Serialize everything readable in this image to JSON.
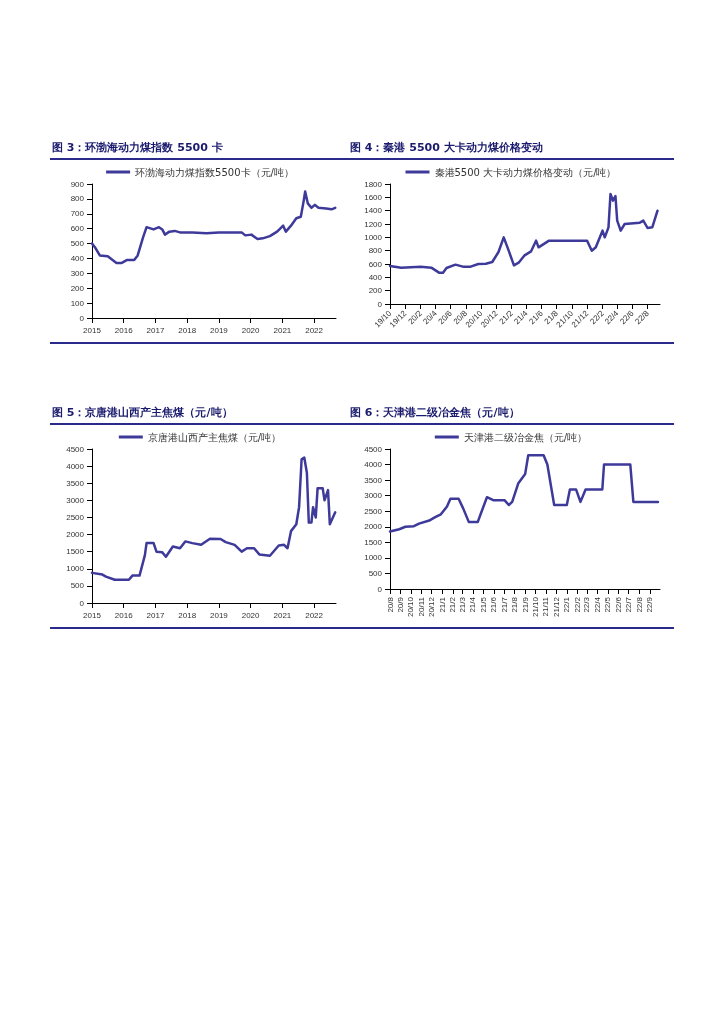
{
  "chart_data": [
    {
      "type": "line",
      "title": "图 3：环渤海动力煤指数 5500 卡",
      "legend": "top",
      "grid": false,
      "marker": "none",
      "line_style": "solid",
      "x": [
        "2015-01-01",
        "2015-02-10",
        "2015-04-01",
        "2015-07-01",
        "2015-10-10",
        "2015-12-10",
        "2016-02-10",
        "2016-05-01",
        "2016-06-10",
        "2016-08-10",
        "2016-09-20",
        "2016-12-10",
        "2017-02-10",
        "2017-03-20",
        "2017-04-20",
        "2017-06-10",
        "2017-08-10",
        "2017-10-10",
        "2018-03-01",
        "2018-08-10",
        "2019-01-01",
        "2019-09-20",
        "2019-11-01",
        "2020-01-10",
        "2020-03-20",
        "2020-05-20",
        "2020-08-10",
        "2020-11-01",
        "2021-01-10",
        "2021-02-10",
        "2021-04-10",
        "2021-06-10",
        "2021-08-01",
        "2021-09-01",
        "2021-09-20",
        "2021-10-20",
        "2021-12-01",
        "2022-01-10",
        "2022-02-20",
        "2022-05-20",
        "2022-07-20",
        "2022-09-01"
      ],
      "xlim": [
        "2015-01-01",
        "2022-09-10"
      ],
      "xticks": [
        {
          "value": "2015-01-01",
          "label": "2015"
        },
        {
          "value": "2016-01-01",
          "label": "2016"
        },
        {
          "value": "2017-01-01",
          "label": "2017"
        },
        {
          "value": "2018-01-01",
          "label": "2018"
        },
        {
          "value": "2019-01-01",
          "label": "2019"
        },
        {
          "value": "2020-01-01",
          "label": "2020"
        },
        {
          "value": "2021-01-01",
          "label": "2021"
        },
        {
          "value": "2022-01-01",
          "label": "2022"
        }
      ],
      "ylim": [
        0,
        900
      ],
      "yticks": [
        0,
        100,
        200,
        300,
        400,
        500,
        600,
        700,
        800,
        900
      ],
      "series": [
        {
          "name": "环渤海动力煤指数5500卡（元/吨）",
          "color": "#3e3a9a",
          "values": [
            500,
            470,
            420,
            415,
            370,
            370,
            390,
            390,
            420,
            540,
            610,
            595,
            610,
            595,
            560,
            580,
            585,
            575,
            575,
            570,
            575,
            575,
            555,
            560,
            530,
            535,
            550,
            580,
            620,
            580,
            620,
            670,
            680,
            780,
            850,
            770,
            740,
            760,
            740,
            735,
            730,
            740
          ]
        }
      ]
    },
    {
      "type": "line",
      "title": "图 4：秦港 5500 大卡动力煤价格变动",
      "legend": "top",
      "grid": false,
      "marker": "none",
      "line_style": "solid",
      "x": [
        "2019-10-01",
        "2019-11-15",
        "2020-02-01",
        "2020-03-15",
        "2020-04-15",
        "2020-05-01",
        "2020-05-15",
        "2020-06-20",
        "2020-07-20",
        "2020-08-20",
        "2020-09-20",
        "2020-10-20",
        "2020-11-15",
        "2020-12-10",
        "2020-12-31",
        "2021-01-20",
        "2021-02-10",
        "2021-03-01",
        "2021-03-25",
        "2021-04-20",
        "2021-05-10",
        "2021-05-20",
        "2021-07-01",
        "2021-12-01",
        "2021-12-20",
        "2022-01-05",
        "2022-02-01",
        "2022-02-10",
        "2022-02-25",
        "2022-03-05",
        "2022-03-15",
        "2022-03-25",
        "2022-04-01",
        "2022-04-15",
        "2022-05-01",
        "2022-07-01",
        "2022-07-15",
        "2022-08-01",
        "2022-08-20",
        "2022-09-10"
      ],
      "xlim": [
        "2019-10-01",
        "2022-09-20"
      ],
      "xticks": [
        {
          "value": "2019-10-01",
          "label": "19/10"
        },
        {
          "value": "2019-12-01",
          "label": "19/12"
        },
        {
          "value": "2020-02-01",
          "label": "20/2"
        },
        {
          "value": "2020-04-01",
          "label": "20/4"
        },
        {
          "value": "2020-06-01",
          "label": "20/6"
        },
        {
          "value": "2020-08-01",
          "label": "20/8"
        },
        {
          "value": "2020-10-01",
          "label": "20/10"
        },
        {
          "value": "2020-12-01",
          "label": "20/12"
        },
        {
          "value": "2021-02-01",
          "label": "21/2"
        },
        {
          "value": "2021-04-01",
          "label": "21/4"
        },
        {
          "value": "2021-06-01",
          "label": "21/6"
        },
        {
          "value": "2021-08-01",
          "label": "21/8"
        },
        {
          "value": "2021-10-01",
          "label": "21/10"
        },
        {
          "value": "2021-12-01",
          "label": "21/12"
        },
        {
          "value": "2022-02-01",
          "label": "22/2"
        },
        {
          "value": "2022-04-01",
          "label": "22/4"
        },
        {
          "value": "2022-06-01",
          "label": "22/6"
        },
        {
          "value": "2022-08-01",
          "label": "22/8"
        }
      ],
      "ylim": [
        0,
        1800
      ],
      "yticks": [
        0,
        200,
        400,
        600,
        800,
        1000,
        1200,
        1400,
        1600,
        1800
      ],
      "series": [
        {
          "name": "秦港5500 大卡动力煤价格变动（元/吨）",
          "color": "#3e3a9a",
          "values": [
            570,
            545,
            560,
            545,
            470,
            470,
            540,
            590,
            560,
            560,
            600,
            605,
            630,
            780,
            1000,
            800,
            580,
            620,
            730,
            790,
            950,
            850,
            950,
            950,
            800,
            850,
            1100,
            1000,
            1150,
            1650,
            1550,
            1620,
            1250,
            1100,
            1200,
            1220,
            1250,
            1140,
            1150,
            1400
          ]
        }
      ]
    },
    {
      "type": "line",
      "title": "图 5：京唐港山西产主焦煤（元/吨）",
      "legend": "top",
      "grid": false,
      "marker": "none",
      "line_style": "solid",
      "x": [
        "2015-01-01",
        "2015-05-01",
        "2015-06-10",
        "2015-09-20",
        "2016-03-01",
        "2016-04-10",
        "2016-07-01",
        "2016-09-01",
        "2016-09-20",
        "2016-12-10",
        "2017-01-12",
        "2017-03-20",
        "2017-05-01",
        "2017-07-20",
        "2017-10-10",
        "2017-12-10",
        "2018-03-01",
        "2018-06-10",
        "2018-09-20",
        "2019-01-20",
        "2019-03-20",
        "2019-07-01",
        "2019-09-20",
        "2019-11-20",
        "2020-02-10",
        "2020-04-10",
        "2020-08-10",
        "2020-11-20",
        "2021-01-20",
        "2021-03-01",
        "2021-04-10",
        "2021-06-10",
        "2021-07-12",
        "2021-08-10",
        "2021-09-10",
        "2021-10-10",
        "2021-11-01",
        "2021-12-01",
        "2021-12-20",
        "2022-01-20",
        "2022-02-10",
        "2022-04-10",
        "2022-05-01",
        "2022-06-10",
        "2022-07-01",
        "2022-09-01"
      ],
      "xlim": [
        "2015-01-01",
        "2022-09-10"
      ],
      "xticks": [
        {
          "value": "2015-01-01",
          "label": "2015"
        },
        {
          "value": "2016-01-01",
          "label": "2016"
        },
        {
          "value": "2017-01-01",
          "label": "2017"
        },
        {
          "value": "2018-01-01",
          "label": "2018"
        },
        {
          "value": "2019-01-01",
          "label": "2019"
        },
        {
          "value": "2020-01-01",
          "label": "2020"
        },
        {
          "value": "2021-01-01",
          "label": "2021"
        },
        {
          "value": "2022-01-01",
          "label": "2022"
        }
      ],
      "ylim": [
        0,
        4500
      ],
      "yticks": [
        0,
        500,
        1000,
        1500,
        2000,
        2500,
        3000,
        3500,
        4000,
        4500
      ],
      "series": [
        {
          "name": "京唐港山西产主焦煤（元/吨）",
          "color": "#3e3a9a",
          "values": [
            880,
            830,
            770,
            680,
            680,
            800,
            800,
            1400,
            1750,
            1750,
            1500,
            1480,
            1350,
            1650,
            1600,
            1800,
            1750,
            1700,
            1880,
            1870,
            1780,
            1700,
            1500,
            1600,
            1600,
            1420,
            1380,
            1680,
            1700,
            1600,
            2100,
            2300,
            2800,
            4200,
            4250,
            3800,
            2350,
            2350,
            2800,
            2500,
            3350,
            3350,
            3000,
            3300,
            2300,
            2650
          ]
        }
      ]
    },
    {
      "type": "line",
      "title": "图 6：天津港二级冶金焦（元/吨）",
      "legend": "top",
      "grid": false,
      "marker": "none",
      "line_style": "solid",
      "x": [
        "2020-08-01",
        "2020-08-28",
        "2020-09-15",
        "2020-10-10",
        "2020-10-25",
        "2020-11-24",
        "2020-12-10",
        "2020-12-28",
        "2021-01-15",
        "2021-01-25",
        "2021-02-18",
        "2021-03-03",
        "2021-03-20",
        "2021-04-15",
        "2021-04-25",
        "2021-05-12",
        "2021-06-01",
        "2021-07-03",
        "2021-07-15",
        "2021-07-25",
        "2021-08-12",
        "2021-09-01",
        "2021-09-10",
        "2021-10-25",
        "2021-11-05",
        "2021-11-25",
        "2022-01-01",
        "2022-01-10",
        "2022-01-28",
        "2022-02-10",
        "2022-02-25",
        "2022-04-15",
        "2022-04-20",
        "2022-07-06",
        "2022-07-15",
        "2022-09-25"
      ],
      "xlim": [
        "2020-08-01",
        "2022-10-01"
      ],
      "xticks": [
        {
          "value": "2020-08-01",
          "label": "20/8"
        },
        {
          "value": "2020-09-01",
          "label": "20/9"
        },
        {
          "value": "2020-10-01",
          "label": "20/10"
        },
        {
          "value": "2020-11-01",
          "label": "20/11"
        },
        {
          "value": "2020-12-01",
          "label": "20/12"
        },
        {
          "value": "2021-01-01",
          "label": "21/1"
        },
        {
          "value": "2021-02-01",
          "label": "21/2"
        },
        {
          "value": "2021-03-01",
          "label": "21/3"
        },
        {
          "value": "2021-04-01",
          "label": "21/4"
        },
        {
          "value": "2021-05-01",
          "label": "21/5"
        },
        {
          "value": "2021-06-01",
          "label": "21/6"
        },
        {
          "value": "2021-07-01",
          "label": "21/7"
        },
        {
          "value": "2021-08-01",
          "label": "21/8"
        },
        {
          "value": "2021-09-01",
          "label": "21/9"
        },
        {
          "value": "2021-10-01",
          "label": "21/10"
        },
        {
          "value": "2021-11-01",
          "label": "21/11"
        },
        {
          "value": "2021-12-01",
          "label": "21/12"
        },
        {
          "value": "2022-01-01",
          "label": "22/1"
        },
        {
          "value": "2022-02-01",
          "label": "22/2"
        },
        {
          "value": "2022-03-01",
          "label": "22/3"
        },
        {
          "value": "2022-04-01",
          "label": "22/4"
        },
        {
          "value": "2022-05-01",
          "label": "22/5"
        },
        {
          "value": "2022-06-01",
          "label": "22/6"
        },
        {
          "value": "2022-07-01",
          "label": "22/7"
        },
        {
          "value": "2022-08-01",
          "label": "22/8"
        },
        {
          "value": "2022-09-01",
          "label": "22/9"
        }
      ],
      "ylim": [
        0,
        4500
      ],
      "yticks": [
        0,
        500,
        1000,
        1500,
        2000,
        2500,
        3000,
        3500,
        4000,
        4500
      ],
      "series": [
        {
          "name": "天津港二级冶金焦（元/吨）",
          "color": "#3e3a9a",
          "values": [
            1850,
            1920,
            2000,
            2020,
            2100,
            2200,
            2300,
            2400,
            2650,
            2900,
            2900,
            2600,
            2150,
            2150,
            2450,
            2950,
            2850,
            2850,
            2700,
            2800,
            3400,
            3700,
            4300,
            4300,
            4000,
            2700,
            2700,
            3200,
            3200,
            2800,
            3200,
            3200,
            4000,
            4000,
            2800,
            2800
          ]
        }
      ]
    }
  ]
}
